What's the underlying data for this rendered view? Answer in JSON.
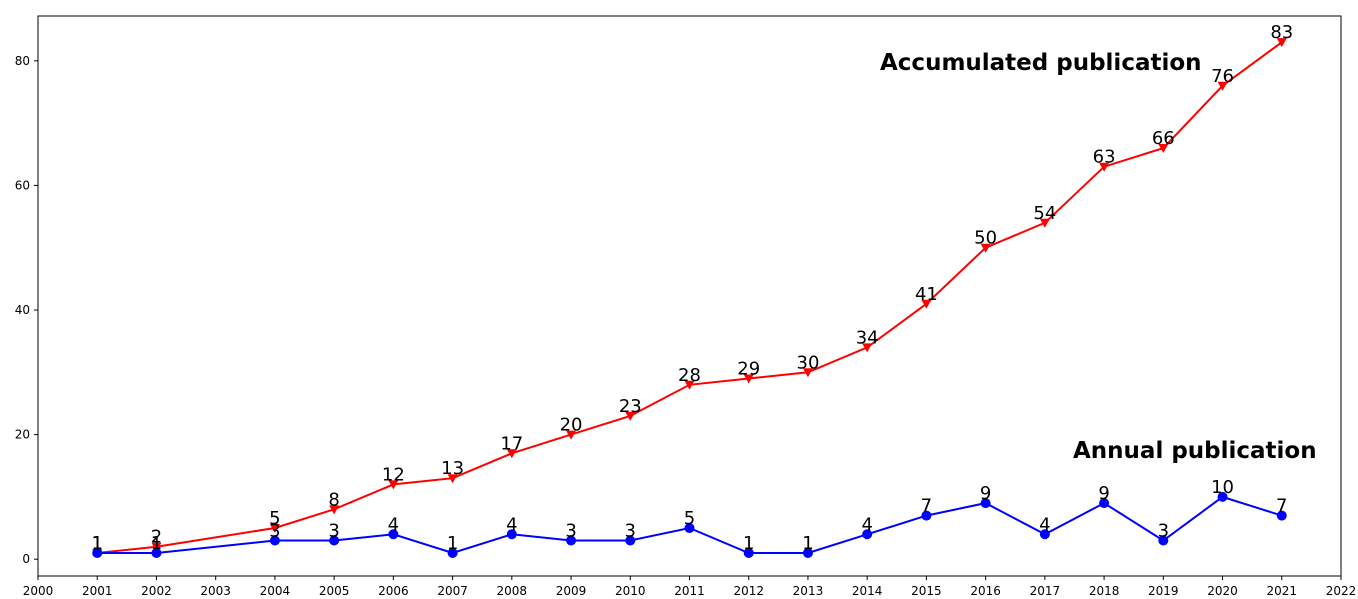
{
  "chart_data": {
    "type": "line",
    "xlim": [
      2000,
      2022
    ],
    "ylim": [
      -2.7,
      87.2
    ],
    "x_ticks": [
      2000,
      2001,
      2002,
      2003,
      2004,
      2005,
      2006,
      2007,
      2008,
      2009,
      2010,
      2011,
      2012,
      2013,
      2014,
      2015,
      2016,
      2017,
      2018,
      2019,
      2020,
      2021,
      2022
    ],
    "y_ticks": [
      0,
      20,
      40,
      60,
      80
    ],
    "grid": false,
    "x": [
      2001,
      2002,
      2004,
      2005,
      2006,
      2007,
      2008,
      2009,
      2010,
      2011,
      2012,
      2013,
      2014,
      2015,
      2016,
      2017,
      2018,
      2019,
      2020,
      2021
    ],
    "series": [
      {
        "name": "Accumulated publication",
        "color": "#ff0000",
        "marker": "triangle-down",
        "values": [
          1,
          2,
          5,
          8,
          12,
          13,
          17,
          20,
          23,
          28,
          29,
          30,
          34,
          41,
          50,
          54,
          63,
          66,
          76,
          83
        ]
      },
      {
        "name": "Annual publication",
        "color": "#0000ff",
        "marker": "circle",
        "values": [
          1,
          1,
          3,
          3,
          4,
          1,
          4,
          3,
          3,
          5,
          1,
          1,
          4,
          7,
          9,
          4,
          9,
          3,
          10,
          7
        ]
      }
    ]
  }
}
